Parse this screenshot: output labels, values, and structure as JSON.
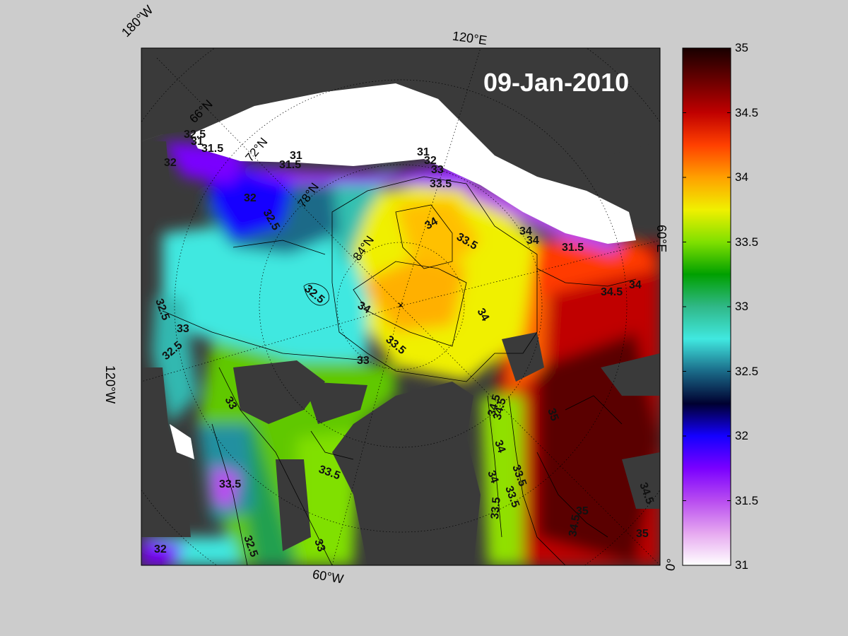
{
  "date": "09-Jan-2010",
  "edge_labels": {
    "w180": "180°W",
    "e120": "120°E",
    "e60": "60°E",
    "w120": "120°W",
    "w60": "60°W",
    "zero": "0°"
  },
  "latitude_labels": [
    "66°N",
    "72°N",
    "78°N",
    "84°N"
  ],
  "contour_labels": [
    "31",
    "31.5",
    "32",
    "32.5",
    "32",
    "32.5",
    "31",
    "31.5",
    "31",
    "32",
    "33",
    "33.5",
    "34",
    "33.5",
    "32.5",
    "34",
    "34",
    "33.5",
    "33",
    "33.5",
    "32.5",
    "33",
    "32.5",
    "33",
    "33.5",
    "32",
    "32.5",
    "33",
    "33.5",
    "34",
    "34.5",
    "34",
    "33.5",
    "34",
    "35",
    "34.5",
    "35",
    "33.5",
    "34.5",
    "35",
    "34.5",
    "34",
    "31.5",
    "34.5",
    "34"
  ],
  "colorbar": {
    "min": 31,
    "max": 35,
    "ticks": [
      "31",
      "31.5",
      "32",
      "32.5",
      "33",
      "33.5",
      "34",
      "34.5",
      "35"
    ],
    "colors": [
      "#ffffff",
      "#e6a8f0",
      "#b84cf0",
      "#7a00ff",
      "#1400ff",
      "#000030",
      "#1a6a88",
      "#40e8e0",
      "#30b888",
      "#00a000",
      "#80e000",
      "#f0f000",
      "#ffa000",
      "#ff4000",
      "#c00000",
      "#6a0000",
      "#180000"
    ]
  },
  "colors": {
    "land": "#3a3a3a",
    "sea_ice": "#ffffff",
    "background": "#cccccc",
    "outside_domain": "#888888"
  }
}
